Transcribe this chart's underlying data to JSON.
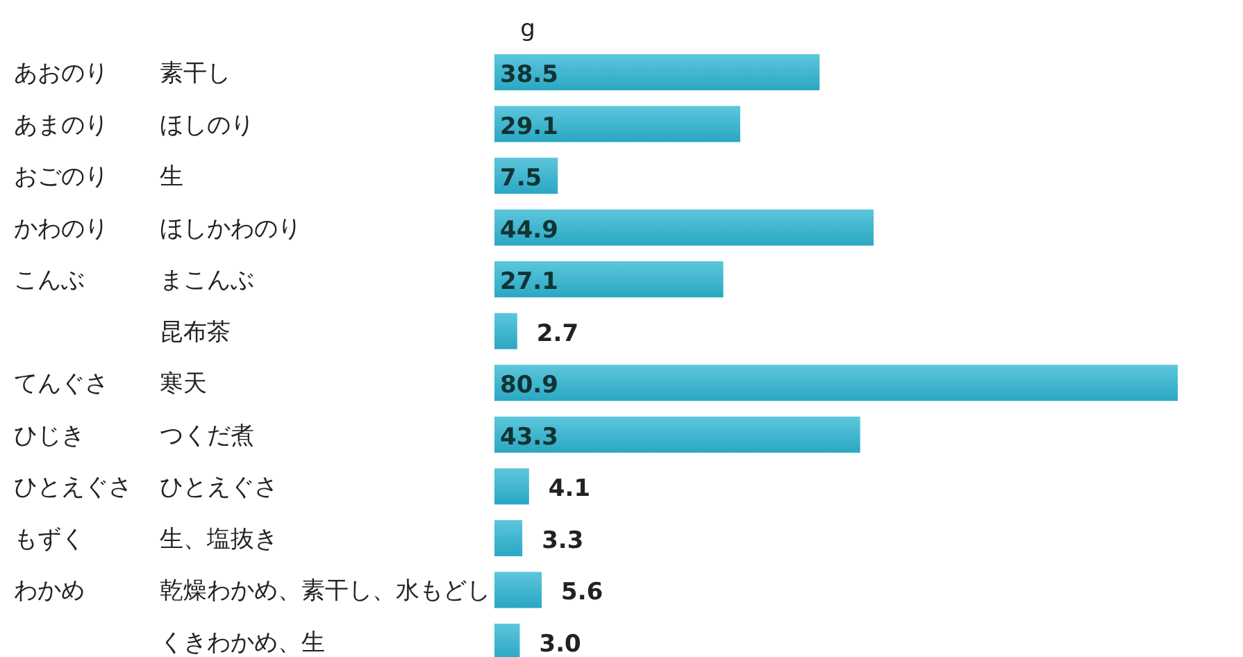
{
  "chart_data": {
    "type": "bar",
    "orientation": "horizontal",
    "xlabel": "g",
    "categories": [
      "素干し",
      "ほしのり",
      "生",
      "ほしかわのり",
      "まこんぶ",
      "昆布茶",
      "寒天",
      "つくだ煮",
      "ひとえぐさ",
      "生、塩抜き",
      "乾燥わかめ、素干し、水もどし",
      "くきわかめ、生"
    ],
    "values": [
      38.5,
      29.1,
      7.5,
      44.9,
      27.1,
      2.7,
      80.9,
      43.3,
      4.1,
      3.3,
      5.6,
      3.0
    ],
    "value_labels": [
      "38.5",
      "29.1",
      "7.5",
      "44.9",
      "27.1",
      "2.7",
      "80.9",
      "43.3",
      "4.1",
      "3.3",
      "5.6",
      "3.0"
    ],
    "color": "#2aa7c3",
    "annotations": [
      "あおのり",
      "あまのり",
      "おごのり",
      "かわのり",
      "こんぶ",
      null,
      "てんぐさ",
      "ひじき",
      "ひとえぐさ",
      "もずく",
      "わかめ",
      null
    ]
  }
}
